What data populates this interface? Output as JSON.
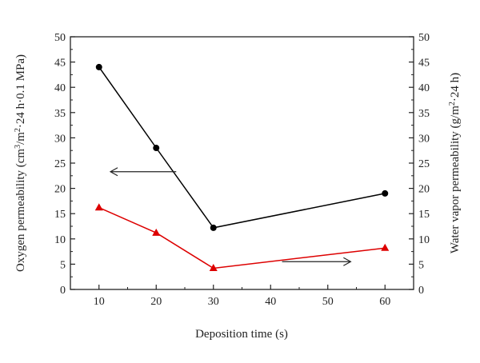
{
  "chart_data": {
    "type": "line",
    "xlabel": "Deposition time (s)",
    "ylabel_left": "Oxygen permeability (cm³/m²·24 h·0.1 MPa)",
    "ylabel_right": "Water vapor permeability (g/m²·24 h)",
    "xlim": [
      5,
      65
    ],
    "ylim_left": [
      0,
      50
    ],
    "ylim_right": [
      0,
      50
    ],
    "x_ticks": [
      10,
      20,
      30,
      40,
      50,
      60
    ],
    "y_ticks": [
      0,
      5,
      10,
      15,
      20,
      25,
      30,
      35,
      40,
      45,
      50
    ],
    "grid": false,
    "series": [
      {
        "axis": "left",
        "marker": "circle",
        "color": "#000000",
        "points": [
          {
            "x": 10,
            "y": 44
          },
          {
            "x": 20,
            "y": 28
          },
          {
            "x": 30,
            "y": 12.2
          },
          {
            "x": 60,
            "y": 19
          }
        ]
      },
      {
        "axis": "right",
        "marker": "triangle",
        "color": "#dd0000",
        "points": [
          {
            "x": 10,
            "y": 16.2
          },
          {
            "x": 20,
            "y": 11.2
          },
          {
            "x": 30,
            "y": 4.2
          },
          {
            "x": 60,
            "y": 8.2
          }
        ]
      }
    ],
    "annotations": [
      {
        "type": "arrow",
        "direction": "left",
        "target_axis": "left"
      },
      {
        "type": "arrow",
        "direction": "right",
        "target_axis": "right"
      }
    ]
  }
}
